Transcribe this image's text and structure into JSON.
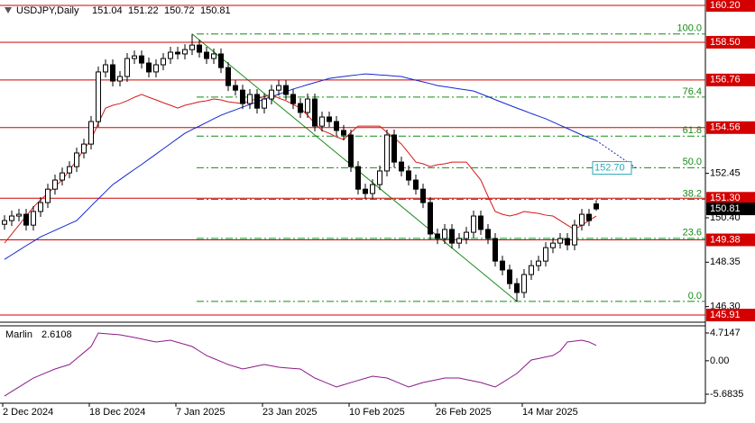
{
  "chart_data": {
    "type": "candlestick",
    "symbol": "USDJPY,Daily",
    "categories": [
      "2 Dec 2024",
      null,
      null,
      null,
      null,
      null,
      null,
      null,
      null,
      null,
      null,
      null,
      "18 Dec 2024",
      null,
      null,
      null,
      null,
      null,
      null,
      null,
      null,
      null,
      null,
      null,
      "7 Jan 2025",
      null,
      null,
      null,
      null,
      null,
      null,
      null,
      null,
      null,
      null,
      null,
      "23 Jan 2025",
      null,
      null,
      null,
      null,
      null,
      null,
      null,
      null,
      null,
      null,
      null,
      "10 Feb 2025",
      null,
      null,
      null,
      null,
      null,
      null,
      null,
      null,
      null,
      null,
      null,
      "26 Feb 2025",
      null,
      null,
      null,
      null,
      null,
      null,
      null,
      null,
      null,
      null,
      null,
      "14 Mar 2025",
      null,
      null,
      null,
      null,
      null,
      null,
      null,
      null,
      null,
      null
    ],
    "open": [
      150.1,
      150.27,
      150.48,
      150.56,
      150.06,
      150.69,
      151.1,
      151.72,
      152.14,
      152.47,
      152.76,
      153.39,
      153.8,
      154.84,
      157.13,
      157.46,
      156.71,
      156.92,
      157.75,
      157.87,
      157.54,
      157.13,
      157.46,
      157.75,
      158.04,
      157.96,
      158.16,
      158.37,
      158.04,
      157.75,
      157.96,
      157.33,
      156.5,
      156.29,
      155.67,
      156.09,
      155.46,
      155.88,
      156.29,
      156.5,
      156.09,
      155.67,
      155.26,
      155.88,
      154.63,
      155.05,
      154.84,
      154.43,
      154.22,
      152.76,
      151.72,
      151.52,
      151.93,
      152.56,
      154.22,
      152.97,
      152.56,
      152.14,
      151.72,
      151.1,
      149.65,
      149.44,
      149.86,
      149.23,
      149.44,
      149.73,
      150.48,
      149.86,
      149.44,
      148.4,
      147.99,
      147.36,
      146.95,
      147.78,
      148.19,
      148.4,
      149.02,
      149.23,
      149.44,
      149.15,
      150.06,
      150.56,
      151.04
    ],
    "high": [
      150.52,
      150.73,
      150.81,
      150.81,
      150.94,
      151.35,
      151.97,
      152.39,
      152.72,
      153.01,
      153.64,
      154.05,
      155.09,
      157.38,
      157.71,
      157.71,
      157.17,
      158.0,
      158.12,
      158.12,
      157.79,
      157.71,
      158.0,
      158.29,
      158.29,
      158.41,
      158.88,
      158.62,
      158.29,
      158.21,
      158.21,
      157.58,
      156.75,
      156.54,
      156.34,
      156.34,
      156.13,
      156.54,
      156.75,
      156.75,
      156.34,
      155.92,
      156.13,
      156.13,
      155.3,
      155.3,
      155.09,
      154.68,
      154.47,
      153.01,
      151.97,
      152.18,
      152.81,
      154.47,
      154.47,
      153.22,
      152.81,
      152.39,
      151.97,
      151.35,
      149.9,
      150.11,
      150.11,
      149.69,
      149.98,
      150.73,
      150.73,
      150.11,
      149.69,
      148.65,
      148.24,
      147.61,
      148.03,
      148.44,
      148.65,
      149.27,
      149.48,
      149.69,
      149.69,
      150.31,
      150.81,
      150.81,
      151.22
    ],
    "low": [
      149.85,
      150.02,
      150.23,
      149.81,
      149.81,
      150.44,
      150.85,
      151.47,
      151.89,
      152.22,
      152.51,
      153.14,
      153.55,
      154.59,
      156.88,
      156.46,
      156.46,
      156.67,
      157.5,
      157.29,
      156.88,
      156.88,
      157.21,
      157.5,
      157.71,
      157.71,
      157.91,
      157.79,
      157.5,
      157.5,
      157.08,
      156.25,
      156.04,
      155.42,
      155.42,
      155.21,
      155.21,
      155.63,
      156.04,
      155.84,
      155.42,
      155.01,
      155.01,
      154.38,
      154.38,
      154.59,
      154.18,
      153.97,
      152.51,
      151.47,
      151.27,
      151.27,
      151.68,
      152.31,
      152.72,
      152.31,
      151.89,
      151.47,
      150.85,
      149.4,
      149.19,
      149.19,
      148.98,
      148.98,
      149.19,
      149.48,
      149.61,
      149.19,
      148.15,
      147.74,
      147.11,
      146.54,
      146.7,
      147.53,
      147.94,
      148.15,
      148.77,
      148.98,
      148.9,
      148.9,
      149.81,
      150.02,
      150.72
    ],
    "close": [
      150.27,
      150.48,
      150.56,
      150.06,
      150.69,
      151.1,
      151.72,
      152.14,
      152.47,
      152.76,
      153.39,
      153.8,
      154.84,
      157.13,
      157.46,
      156.71,
      156.92,
      157.75,
      157.87,
      157.54,
      157.13,
      157.46,
      157.75,
      158.04,
      157.96,
      158.16,
      158.37,
      158.04,
      157.75,
      157.96,
      157.33,
      156.5,
      156.29,
      155.67,
      156.09,
      155.46,
      155.88,
      156.29,
      156.5,
      156.09,
      155.67,
      155.26,
      155.88,
      154.63,
      155.05,
      154.84,
      154.43,
      154.22,
      152.76,
      151.72,
      151.52,
      151.93,
      152.56,
      154.22,
      152.97,
      152.56,
      152.14,
      151.72,
      151.1,
      149.65,
      149.44,
      149.86,
      149.23,
      149.44,
      149.73,
      150.48,
      149.86,
      149.44,
      148.4,
      147.99,
      147.36,
      146.95,
      147.78,
      148.19,
      148.4,
      149.02,
      149.23,
      149.44,
      149.15,
      150.06,
      150.56,
      150.27,
      150.81
    ],
    "ylim": [
      145.58,
      160.45
    ],
    "yticks": [
      152.45,
      {
        "value": 150.4,
        "label": "150.40"
      },
      148.35,
      {
        "value": 146.3,
        "label": "146.30"
      }
    ],
    "levels": [
      {
        "value": 160.2,
        "label": "160.20"
      },
      {
        "value": 158.5,
        "label": "158.50"
      },
      156.76,
      154.56,
      {
        "value": 151.3,
        "label": "151.30"
      },
      149.38,
      145.91
    ],
    "level_color": "#d40000",
    "fibonacci": [
      {
        "label": "100.0",
        "value": 158.88
      },
      {
        "label": "76.4",
        "value": 155.97
      },
      {
        "label": "61.8",
        "value": 154.17
      },
      {
        "label": "50.0",
        "value": 152.71
      },
      {
        "label": "38.2",
        "value": 151.25
      },
      {
        "label": "23.6",
        "value": 149.45
      },
      {
        "label": "0.0",
        "value": 146.54
      }
    ],
    "fib_color": "#178a17",
    "series": [
      {
        "color": "#d81818",
        "values": [
          149.23,
          149.65,
          150.06,
          150.48,
          150.89,
          151.23,
          151.52,
          151.85,
          152.14,
          152.6,
          153.05,
          153.55,
          154.01,
          154.76,
          155.46,
          155.59,
          155.67,
          155.8,
          155.96,
          156.09,
          155.96,
          155.84,
          155.71,
          155.59,
          155.46,
          155.59,
          155.67,
          155.75,
          155.8,
          155.88,
          155.84,
          155.75,
          155.71,
          155.67,
          155.8,
          155.88,
          156.0,
          156.09,
          155.92,
          155.8,
          155.63,
          155.46,
          155.13,
          154.76,
          154.43,
          154.3,
          154.13,
          154.01,
          154.34,
          154.63,
          154.63,
          154.63,
          154.63,
          154.34,
          154.09,
          153.8,
          153.39,
          152.97,
          152.89,
          152.76,
          152.85,
          152.89,
          152.97,
          152.97,
          152.97,
          152.56,
          152.14,
          151.39,
          150.69,
          150.56,
          150.48,
          150.56,
          150.69,
          150.64,
          150.6,
          150.52,
          150.48,
          150.27,
          150.06,
          149.86,
          150.06,
          150.27,
          150.48
        ]
      },
      {
        "color": "#1428d0",
        "values": [
          148.48,
          148.69,
          148.9,
          149.11,
          149.31,
          149.52,
          149.67,
          149.82,
          149.97,
          150.12,
          150.27,
          150.6,
          150.94,
          151.27,
          151.6,
          151.93,
          152.16,
          152.4,
          152.63,
          152.86,
          153.1,
          153.34,
          153.58,
          153.82,
          154.06,
          154.3,
          154.47,
          154.63,
          154.8,
          154.97,
          155.13,
          155.26,
          155.38,
          155.51,
          155.63,
          155.75,
          155.87,
          155.99,
          156.1,
          156.22,
          156.34,
          156.44,
          156.54,
          156.64,
          156.73,
          156.83,
          156.88,
          156.92,
          156.96,
          157.0,
          157.04,
          157.02,
          156.99,
          156.97,
          156.94,
          156.92,
          156.83,
          156.75,
          156.67,
          156.59,
          156.5,
          156.45,
          156.4,
          156.35,
          156.3,
          156.25,
          156.12,
          155.99,
          155.85,
          155.72,
          155.59,
          155.46,
          155.34,
          155.21,
          155.09,
          154.97,
          154.82,
          154.67,
          154.52,
          154.37,
          154.22,
          154.09,
          153.97
        ],
        "projection": {
          "value": 152.7,
          "label": "152.70"
        }
      }
    ],
    "indicator": {
      "name": "Marlin",
      "color": "#8a1a8a",
      "values": [
        -5.99,
        -5.22,
        -4.46,
        -3.7,
        -2.93,
        -2.42,
        -1.91,
        -1.4,
        -1.02,
        -0.64,
        0.38,
        1.4,
        2.42,
        4.71,
        4.61,
        4.51,
        4.41,
        4.18,
        3.95,
        3.7,
        3.44,
        3.19,
        3.34,
        3.49,
        3.13,
        2.78,
        2.42,
        1.66,
        0.89,
        0.38,
        -0.13,
        -0.64,
        -1.02,
        -1.4,
        -1.15,
        -0.89,
        -0.64,
        -0.87,
        -1.1,
        -1.2,
        -1.3,
        -1.4,
        -2.17,
        -2.93,
        -3.44,
        -3.95,
        -4.46,
        -4.08,
        -3.7,
        -3.34,
        -2.99,
        -2.63,
        -2.78,
        -2.93,
        -3.44,
        -3.95,
        -4.46,
        -4.08,
        -3.7,
        -3.44,
        -3.19,
        -2.93,
        -2.93,
        -2.93,
        -3.19,
        -3.44,
        -3.7,
        -4.08,
        -4.46,
        -3.7,
        -2.93,
        -2.17,
        -1.02,
        0.13,
        0.38,
        0.64,
        0.89,
        1.66,
        3.19,
        3.34,
        3.49,
        3.19,
        2.6108
      ],
      "ylim": [
        -7.21,
        5.94
      ],
      "yticks": [
        4.7147,
        {
          "value": 0,
          "label": "0.00"
        },
        -5.6835
      ]
    }
  }
}
